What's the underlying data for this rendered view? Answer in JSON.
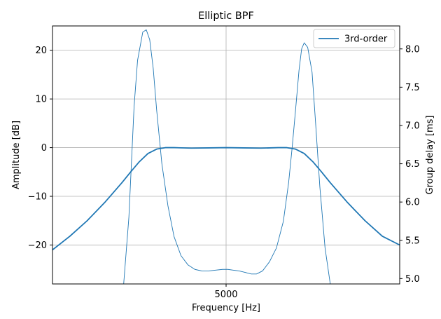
{
  "chart_data": {
    "type": "line",
    "title": "Elliptic BPF",
    "xlabel": "Frequency [Hz]",
    "ylabel_left": "Amplitude [dB]",
    "ylabel_right": "Group delay [ms]",
    "xlim": [
      3000,
      7000
    ],
    "ylim_left": [
      -28,
      25
    ],
    "ylim_right": [
      4.93,
      8.3
    ],
    "x_ticks": [
      5000
    ],
    "x_tick_labels": [
      "5000"
    ],
    "y_left_ticks": [
      20,
      10,
      0,
      -10,
      -20
    ],
    "y_left_tick_labels": [
      "20",
      "10",
      "0",
      "−10",
      "−20"
    ],
    "y_right_ticks": [
      8.0,
      7.5,
      7.0,
      6.5,
      6.0,
      5.5,
      5.0
    ],
    "y_right_tick_labels": [
      "8.0",
      "7.5",
      "7.0",
      "6.5",
      "6.0",
      "5.5",
      "5.0"
    ],
    "grid": true,
    "legend_position": "top-right",
    "series": [
      {
        "name": "3rd-order",
        "axis": "left",
        "color": "#1f77b4",
        "x": [
          3000,
          3200,
          3400,
          3600,
          3800,
          3900,
          4000,
          4100,
          4200,
          4300,
          4400,
          4600,
          4800,
          5000,
          5200,
          5400,
          5600,
          5700,
          5800,
          5900,
          6000,
          6100,
          6200,
          6400,
          6600,
          6800,
          7000
        ],
        "values": [
          -21.0,
          -18.2,
          -15.0,
          -11.3,
          -7.2,
          -5.0,
          -2.9,
          -1.2,
          -0.3,
          0.0,
          0.0,
          -0.1,
          -0.05,
          0.0,
          -0.05,
          -0.1,
          0.0,
          0.0,
          -0.3,
          -1.2,
          -2.9,
          -5.0,
          -7.2,
          -11.3,
          -15.0,
          -18.2,
          -20.0
        ]
      },
      {
        "axis": "right",
        "color": "#1f77b4",
        "x": [
          3820,
          3880,
          3940,
          3980,
          4040,
          4080,
          4120,
          4160,
          4200,
          4260,
          4330,
          4400,
          4480,
          4560,
          4640,
          4720,
          4800,
          4880,
          4960,
          5020,
          5080,
          5150,
          5220,
          5290,
          5350,
          5420,
          5500,
          5580,
          5660,
          5720,
          5760,
          5800,
          5840,
          5870,
          5900,
          5940,
          5990,
          6030,
          6080,
          6140,
          6200
        ],
        "values": [
          4.93,
          5.8,
          7.25,
          7.85,
          8.22,
          8.25,
          8.12,
          7.75,
          7.2,
          6.5,
          5.95,
          5.55,
          5.3,
          5.18,
          5.12,
          5.1,
          5.1,
          5.11,
          5.12,
          5.12,
          5.11,
          5.1,
          5.08,
          5.06,
          5.06,
          5.1,
          5.22,
          5.4,
          5.75,
          6.25,
          6.7,
          7.2,
          7.72,
          8.0,
          8.08,
          8.02,
          7.7,
          7.05,
          6.2,
          5.4,
          4.93
        ]
      }
    ]
  }
}
